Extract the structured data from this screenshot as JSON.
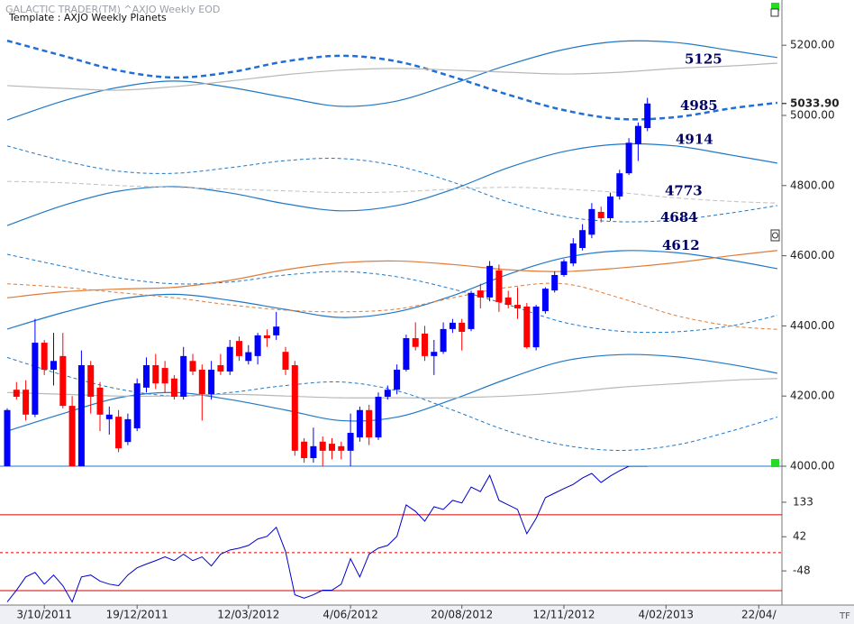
{
  "chart_data": {
    "type": "candlestick",
    "title": "GALACTIC TRADER(TM)   ^AXJO Weekly EOD",
    "subtitle": "Template : AXJO Weekly Planets",
    "corner_label": "TF",
    "categories": [
      null,
      null,
      null,
      null,
      "3/10/2011",
      null,
      null,
      null,
      null,
      null,
      null,
      null,
      null,
      null,
      "19/12/2011",
      null,
      null,
      null,
      null,
      null,
      null,
      null,
      null,
      null,
      null,
      null,
      "12/03/2012",
      null,
      null,
      null,
      null,
      null,
      null,
      null,
      null,
      null,
      null,
      "4/06/2012",
      null,
      null,
      null,
      null,
      null,
      null,
      null,
      null,
      null,
      null,
      null,
      "20/08/2012",
      null,
      null,
      null,
      null,
      null,
      null,
      null,
      null,
      null,
      null,
      "12/11/2012",
      null,
      null,
      null,
      null,
      null,
      null,
      null,
      null,
      null,
      null,
      "4/02/2013",
      null,
      null,
      null,
      null,
      null,
      null,
      null,
      null,
      null,
      "22/04/",
      null,
      null
    ],
    "open": [
      3992,
      4218,
      4218,
      4147,
      4352,
      4275,
      4314,
      4172,
      3992,
      4288,
      4224,
      4134,
      4141,
      4069,
      4108,
      4224,
      4288,
      4280,
      4250,
      4198,
      4300,
      4275,
      4205,
      4288,
      4270,
      4357,
      4300,
      4314,
      4373,
      4373,
      4326,
      4288,
      4070,
      4023,
      4070,
      4064,
      4057,
      4044,
      4082,
      4160,
      4082,
      4198,
      4218,
      4275,
      4365,
      4378,
      4314,
      4326,
      4391,
      4409,
      4391,
      4501,
      4481,
      4558,
      4481,
      4460,
      4455,
      4339,
      4442,
      4501,
      4545,
      4578,
      4622,
      4660,
      4725,
      4707,
      4769,
      4835,
      4918,
      4964,
      null,
      null,
      null,
      null,
      null,
      null,
      null,
      null,
      null,
      null,
      null,
      null,
      null,
      null
    ],
    "high": [
      4165,
      4240,
      4245,
      4420,
      4360,
      4380,
      4380,
      4200,
      4330,
      4300,
      4240,
      4170,
      4160,
      4150,
      4250,
      4310,
      4320,
      4300,
      4260,
      4340,
      4320,
      4290,
      4300,
      4320,
      4360,
      4370,
      4345,
      4380,
      4390,
      4440,
      4340,
      4300,
      4080,
      4110,
      4085,
      4080,
      4070,
      4150,
      4170,
      4175,
      4210,
      4230,
      4290,
      4375,
      4410,
      4400,
      4360,
      4410,
      4420,
      4420,
      4500,
      4520,
      4585,
      4575,
      4500,
      4510,
      4465,
      4460,
      4510,
      4555,
      4590,
      4650,
      4690,
      4750,
      4740,
      4780,
      4845,
      4935,
      4980,
      5050,
      null,
      null,
      null,
      null,
      null,
      null,
      null,
      null,
      null,
      null,
      null,
      null,
      null,
      null
    ],
    "low": [
      3838,
      4190,
      4130,
      4140,
      4260,
      4230,
      4165,
      3970,
      3990,
      4150,
      4100,
      4090,
      4040,
      4060,
      4100,
      4210,
      4220,
      4210,
      4190,
      4190,
      4260,
      4130,
      4190,
      4260,
      4260,
      4300,
      4290,
      4290,
      4340,
      4360,
      4260,
      4030,
      4010,
      4010,
      3985,
      4020,
      4020,
      3990,
      4070,
      4060,
      4075,
      4190,
      4205,
      4270,
      4330,
      4300,
      4260,
      4320,
      4380,
      4330,
      4385,
      4450,
      4470,
      4440,
      4450,
      4420,
      4335,
      4330,
      4435,
      4495,
      4540,
      4570,
      4615,
      4650,
      4695,
      4700,
      4760,
      4830,
      4870,
      4955,
      null,
      null,
      null,
      null,
      null,
      null,
      null,
      null,
      null,
      null,
      null,
      null,
      null,
      null
    ],
    "close": [
      4160,
      4198,
      4147,
      4352,
      4275,
      4300,
      4172,
      3980,
      4288,
      4198,
      4147,
      4147,
      4051,
      4134,
      4236,
      4288,
      4236,
      4236,
      4198,
      4314,
      4270,
      4205,
      4275,
      4270,
      4340,
      4314,
      4325,
      4373,
      4365,
      4398,
      4275,
      4044,
      4023,
      4057,
      4044,
      4044,
      4044,
      4095,
      4160,
      4082,
      4198,
      4218,
      4275,
      4365,
      4340,
      4314,
      4326,
      4391,
      4409,
      4383,
      4494,
      4481,
      4571,
      4468,
      4460,
      4450,
      4339,
      4455,
      4506,
      4545,
      4584,
      4635,
      4673,
      4733,
      4707,
      4769,
      4835,
      4922,
      4970,
      5033.9,
      null,
      null,
      null,
      null,
      null,
      null,
      null,
      null,
      null,
      null,
      null,
      null,
      null,
      null
    ],
    "up_color": "#0000ff",
    "down_color": "#ff0000",
    "ylim": [
      4000,
      5329
    ],
    "yticks": [
      {
        "value": 4000,
        "label": "4000.00"
      },
      {
        "value": 4200,
        "label": "4200.00"
      },
      {
        "value": 4400,
        "label": "4400.00"
      },
      {
        "value": 4600,
        "label": "4600.00"
      },
      {
        "value": 4800,
        "label": "4800.00"
      },
      {
        "value": 5000,
        "label": "5000.00"
      },
      {
        "value": 5200,
        "label": "5200.00"
      }
    ],
    "last_price": {
      "value": 5033.9,
      "label": "5033.90"
    },
    "level_labels": [
      5125,
      4985,
      4914,
      4773,
      4684,
      4612
    ],
    "level_color": "#000066",
    "curves": [
      {
        "color": "#1f6fd6",
        "dash": "6 4",
        "width": 2.5,
        "x": [
          0,
          6,
          12,
          18,
          24,
          30,
          36,
          42,
          48,
          54,
          60,
          66,
          72,
          78,
          83
        ],
        "values": [
          5213,
          5170,
          5128,
          5108,
          5123,
          5154,
          5170,
          5154,
          5110,
          5059,
          5015,
          4990,
          4995,
          5020,
          5036
        ]
      },
      {
        "color": "#1f78c8",
        "dash": "",
        "width": 1.2,
        "x": [
          0,
          6,
          12,
          18,
          24,
          30,
          36,
          42,
          48,
          54,
          60,
          66,
          72,
          78,
          83
        ],
        "values": [
          4987,
          5041,
          5080,
          5098,
          5080,
          5051,
          5026,
          5041,
          5090,
          5144,
          5188,
          5211,
          5208,
          5185,
          5165
        ]
      },
      {
        "color": "#b8b8b8",
        "dash": "",
        "width": 1.2,
        "x": [
          0,
          6,
          12,
          18,
          24,
          30,
          36,
          42,
          48,
          54,
          60,
          66,
          72,
          78,
          83
        ],
        "values": [
          5085,
          5077,
          5072,
          5082,
          5098,
          5116,
          5129,
          5134,
          5129,
          5123,
          5118,
          5123,
          5134,
          5141,
          5149
        ]
      },
      {
        "color": "#1f78c8",
        "dash": "",
        "width": 1.2,
        "x": [
          0,
          6,
          12,
          18,
          24,
          30,
          36,
          42,
          48,
          54,
          60,
          66,
          72,
          78,
          83
        ],
        "values": [
          4686,
          4743,
          4784,
          4797,
          4779,
          4748,
          4728,
          4743,
          4789,
          4851,
          4897,
          4918,
          4913,
          4887,
          4864
        ]
      },
      {
        "color": "#1f78c8",
        "dash": "4 3",
        "width": 1,
        "x": [
          0,
          6,
          12,
          18,
          24,
          30,
          36,
          42,
          48,
          54,
          60,
          66,
          72,
          78,
          83
        ],
        "values": [
          4913,
          4871,
          4841,
          4835,
          4851,
          4871,
          4877,
          4856,
          4810,
          4753,
          4712,
          4697,
          4702,
          4722,
          4743
        ]
      },
      {
        "color": "#c0c0c0",
        "dash": "5 3",
        "width": 1,
        "x": [
          0,
          6,
          12,
          18,
          24,
          30,
          36,
          42,
          48,
          54,
          60,
          66,
          72,
          78,
          83
        ],
        "values": [
          4812,
          4808,
          4800,
          4795,
          4790,
          4785,
          4780,
          4782,
          4790,
          4795,
          4790,
          4780,
          4765,
          4755,
          4750
        ]
      },
      {
        "color": "#1f78c8",
        "dash": "",
        "width": 1.2,
        "x": [
          0,
          6,
          12,
          18,
          24,
          30,
          36,
          42,
          48,
          54,
          60,
          66,
          72,
          78,
          83
        ],
        "values": [
          4391,
          4438,
          4476,
          4490,
          4473,
          4447,
          4424,
          4440,
          4486,
          4547,
          4594,
          4614,
          4609,
          4587,
          4563
        ]
      },
      {
        "color": "#1f78c8",
        "dash": "4 3",
        "width": 1,
        "x": [
          0,
          6,
          12,
          18,
          24,
          30,
          36,
          42,
          48,
          54,
          60,
          66,
          72,
          78,
          83
        ],
        "values": [
          4604,
          4570,
          4537,
          4520,
          4525,
          4545,
          4555,
          4540,
          4505,
          4460,
          4410,
          4385,
          4383,
          4400,
          4430
        ]
      },
      {
        "color": "#e07b39",
        "dash": "",
        "width": 1.2,
        "x": [
          0,
          6,
          12,
          18,
          24,
          30,
          36,
          42,
          48,
          54,
          60,
          66,
          72,
          78,
          83
        ],
        "values": [
          4480,
          4497,
          4505,
          4510,
          4530,
          4560,
          4580,
          4585,
          4575,
          4560,
          4555,
          4565,
          4580,
          4600,
          4615
        ]
      },
      {
        "color": "#e07b39",
        "dash": "4 3",
        "width": 1,
        "x": [
          0,
          6,
          12,
          18,
          24,
          30,
          36,
          42,
          48,
          54,
          60,
          66,
          72,
          78,
          83
        ],
        "values": [
          4520,
          4510,
          4495,
          4480,
          4460,
          4445,
          4440,
          4448,
          4480,
          4510,
          4520,
          4480,
          4430,
          4400,
          4390
        ]
      },
      {
        "color": "#1f78c8",
        "dash": "",
        "width": 1.2,
        "x": [
          0,
          6,
          12,
          18,
          24,
          30,
          36,
          42,
          48,
          54,
          60,
          66,
          72,
          78,
          83
        ],
        "values": [
          4100,
          4150,
          4195,
          4210,
          4190,
          4160,
          4130,
          4140,
          4190,
          4250,
          4300,
          4318,
          4312,
          4290,
          4265
        ]
      },
      {
        "color": "#1f78c8",
        "dash": "4 3",
        "width": 1,
        "x": [
          0,
          6,
          12,
          18,
          24,
          30,
          36,
          42,
          48,
          54,
          60,
          66,
          72,
          78,
          83
        ],
        "values": [
          4310,
          4260,
          4220,
          4200,
          4210,
          4230,
          4240,
          4215,
          4160,
          4100,
          4060,
          4045,
          4060,
          4100,
          4140
        ]
      },
      {
        "color": "#b8b8b8",
        "dash": "",
        "width": 1.2,
        "x": [
          0,
          6,
          12,
          18,
          24,
          30,
          36,
          42,
          48,
          54,
          60,
          66,
          72,
          78,
          83
        ],
        "values": [
          4210,
          4205,
          4200,
          4200,
          4205,
          4200,
          4195,
          4195,
          4195,
          4200,
          4210,
          4225,
          4235,
          4245,
          4250
        ]
      }
    ],
    "indicator": {
      "axis": "y2",
      "color": "#0000cc",
      "values": [
        -130,
        -99,
        -64,
        -52,
        -83,
        -59,
        -87,
        -130,
        -64,
        -59,
        -75,
        -83,
        -87,
        -59,
        -40,
        -30,
        -21,
        -11,
        -21,
        -4,
        -21,
        -11,
        -35,
        -4,
        7,
        12,
        19,
        36,
        43,
        67,
        3,
        -111,
        -120,
        -111,
        -99,
        -99,
        -83,
        -16,
        -64,
        -4,
        12,
        19,
        43,
        126,
        109,
        83,
        121,
        114,
        138,
        131,
        173,
        161,
        204,
        138,
        126,
        114,
        50,
        90,
        145,
        157,
        169,
        180,
        197,
        209,
        185,
        202,
        216,
        228,
        228,
        228,
        null,
        null,
        null,
        null,
        null,
        null,
        null,
        null,
        null,
        null,
        null,
        null,
        null,
        null
      ]
    },
    "y2lim": [
      -131,
      228
    ],
    "y2ticks": [
      -48,
      42,
      133
    ],
    "reference_lines": [
      {
        "value": 100,
        "dash": ""
      },
      {
        "value": 0,
        "dash": "3 3"
      },
      {
        "value": -100,
        "dash": ""
      }
    ],
    "reference_color": "#d40000"
  }
}
